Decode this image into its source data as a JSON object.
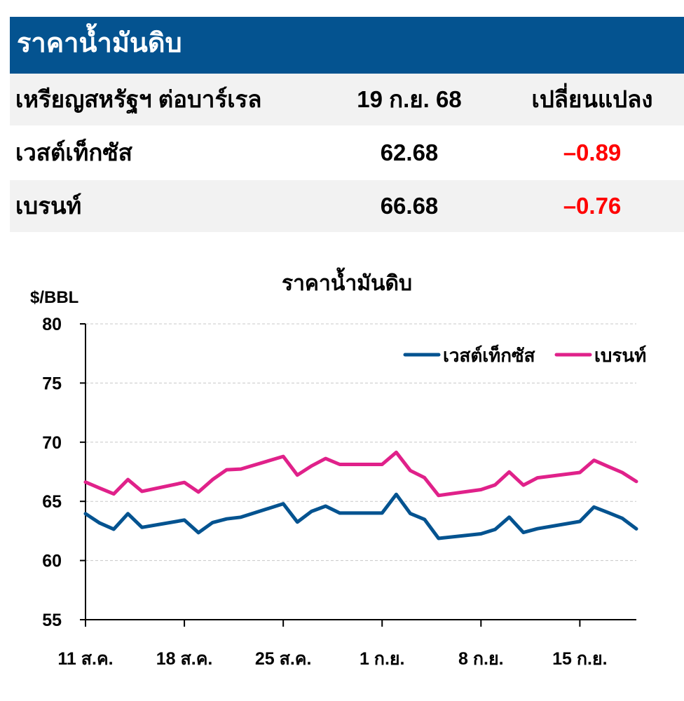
{
  "header": {
    "title": "ราคาน้ำมันดิบ"
  },
  "table": {
    "columns": [
      "เหรียญสหรัฐฯ ต่อบาร์เรล",
      "19 ก.ย. 68",
      "เปลี่ยนแปลง"
    ],
    "rows": [
      {
        "name": "เวสต์เท็กซัส",
        "price": "62.68",
        "change": "–0.89"
      },
      {
        "name": "เบรนท์",
        "price": "66.68",
        "change": "–0.76"
      }
    ]
  },
  "colors": {
    "header_bg": "#045390",
    "wti": "#045390",
    "brent": "#e0218a",
    "negative": "#ff0000"
  },
  "chart_data": {
    "type": "line",
    "title": "ราคาน้ำมันดิบ",
    "ylabel": "$/BBL",
    "ylim": [
      55,
      80
    ],
    "yticks": [
      55,
      60,
      65,
      70,
      75,
      80
    ],
    "xticks": [
      "11 ส.ค.",
      "18 ส.ค.",
      "25 ส.ค.",
      "1 ก.ย.",
      "8 ก.ย.",
      "15 ก.ย."
    ],
    "grid": true,
    "legend": "top-right",
    "x": [
      "2025-08-11",
      "2025-08-12",
      "2025-08-13",
      "2025-08-14",
      "2025-08-15",
      "2025-08-18",
      "2025-08-19",
      "2025-08-20",
      "2025-08-21",
      "2025-08-22",
      "2025-08-25",
      "2025-08-26",
      "2025-08-27",
      "2025-08-28",
      "2025-08-29",
      "2025-09-01",
      "2025-09-02",
      "2025-09-03",
      "2025-09-04",
      "2025-09-05",
      "2025-09-08",
      "2025-09-09",
      "2025-09-10",
      "2025-09-11",
      "2025-09-12",
      "2025-09-15",
      "2025-09-16",
      "2025-09-17",
      "2025-09-18",
      "2025-09-19"
    ],
    "series": [
      {
        "name": "เวสต์เท็กซัส",
        "color": "#045390",
        "values": [
          63.96,
          63.17,
          62.65,
          63.96,
          62.8,
          63.42,
          62.35,
          63.21,
          63.52,
          63.66,
          64.8,
          63.25,
          64.15,
          64.6,
          64.01,
          64.01,
          65.59,
          63.97,
          63.48,
          61.87,
          62.26,
          62.63,
          63.67,
          62.37,
          62.69,
          63.3,
          64.52,
          64.05,
          63.57,
          62.68
        ]
      },
      {
        "name": "เบรนท์",
        "color": "#e0218a",
        "values": [
          66.63,
          66.12,
          65.63,
          66.84,
          65.85,
          66.6,
          65.79,
          66.84,
          67.67,
          67.73,
          68.8,
          67.22,
          67.99,
          68.62,
          68.12,
          68.12,
          69.14,
          67.6,
          67.0,
          65.5,
          65.99,
          66.39,
          67.49,
          66.37,
          66.99,
          67.44,
          68.47,
          67.95,
          67.44,
          66.68
        ]
      }
    ]
  }
}
